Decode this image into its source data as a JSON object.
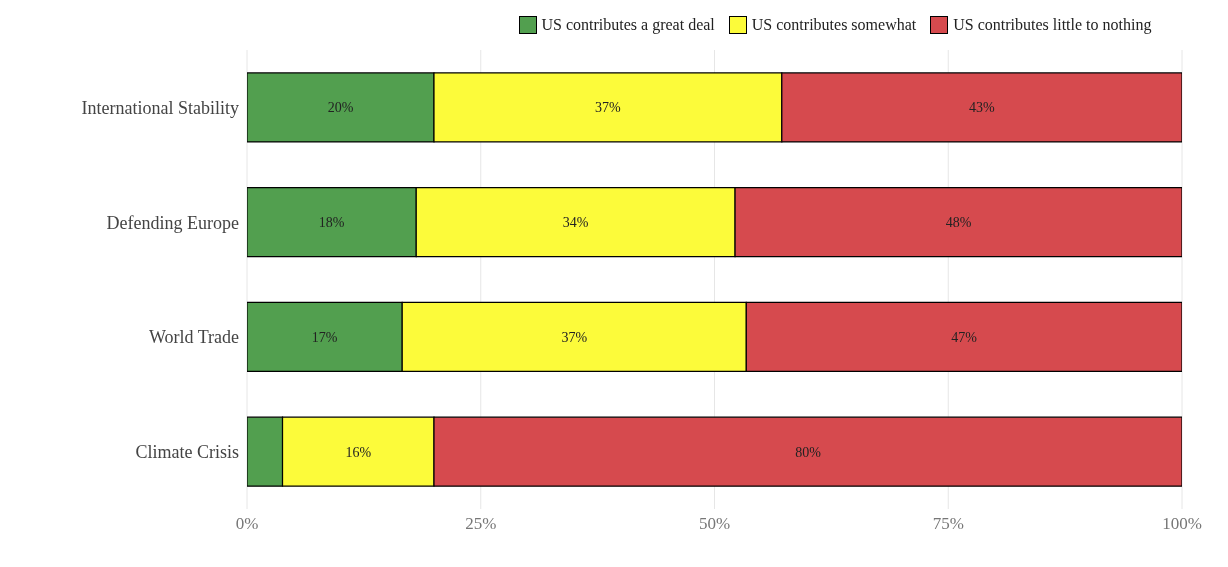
{
  "chart_data": {
    "type": "bar",
    "orientation": "horizontal",
    "stacked": true,
    "categories": [
      "International Stability",
      "Defending Europe",
      "World Trade",
      "Climate Crisis"
    ],
    "series": [
      {
        "name": "US contributes a great deal",
        "color": "#529f4f",
        "values": [
          20,
          18.1,
          16.6,
          3.8
        ],
        "value_labels": [
          "20%",
          "18%",
          "17%",
          null
        ]
      },
      {
        "name": "US contributes somewhat",
        "color": "#fcfb3a",
        "values": [
          37.2,
          34.1,
          36.8,
          16.2
        ],
        "value_labels": [
          "37%",
          "34%",
          "37%",
          "16%"
        ]
      },
      {
        "name": "US contributes little to nothing",
        "color": "#d64a4e",
        "values": [
          42.8,
          47.8,
          46.6,
          80
        ],
        "value_labels": [
          "43%",
          "48%",
          "47%",
          "80%"
        ]
      }
    ],
    "xlim": [
      0,
      100
    ],
    "xticks": [
      {
        "value": 0,
        "label": "0%"
      },
      {
        "value": 25,
        "label": "25%"
      },
      {
        "value": 50,
        "label": "50%"
      },
      {
        "value": 75,
        "label": "75%"
      },
      {
        "value": 100,
        "label": "100%"
      }
    ],
    "grid": "x",
    "legend": "top"
  }
}
